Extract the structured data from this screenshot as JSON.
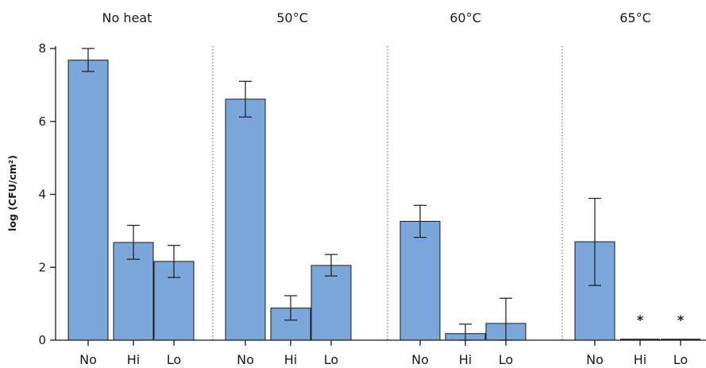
{
  "chart_data": {
    "type": "bar",
    "ylabel": "log (CFU/cm²)",
    "ylim": [
      0,
      8
    ],
    "yticks": [
      "0",
      "2",
      "4",
      "6",
      "8"
    ],
    "grid": false,
    "legend": "none",
    "bar_color": "#7ba6d9",
    "panels": [
      {
        "title": "No heat",
        "categories": [
          "No",
          "Hi",
          "Lo"
        ],
        "values": [
          7.68,
          2.68,
          2.16
        ],
        "error_low": [
          7.37,
          2.22,
          1.72
        ],
        "error_high": [
          8.0,
          3.15,
          2.6
        ],
        "markers": [
          "",
          "",
          ""
        ]
      },
      {
        "title": "50°C",
        "categories": [
          "No",
          "Hi",
          "Lo"
        ],
        "values": [
          6.61,
          0.88,
          2.05
        ],
        "error_low": [
          6.12,
          0.55,
          1.76
        ],
        "error_high": [
          7.1,
          1.22,
          2.35
        ],
        "markers": [
          "",
          "",
          ""
        ]
      },
      {
        "title": "60°C",
        "categories": [
          "No",
          "Hi",
          "Lo"
        ],
        "values": [
          3.26,
          0.18,
          0.46
        ],
        "error_low": [
          2.82,
          0.0,
          0.0
        ],
        "error_high": [
          3.7,
          0.44,
          1.15
        ],
        "markers": [
          "",
          "",
          ""
        ]
      },
      {
        "title": "65°C",
        "categories": [
          "No",
          "Hi",
          "Lo"
        ],
        "values": [
          2.7,
          0.0,
          0.0
        ],
        "error_low": [
          1.5,
          null,
          null
        ],
        "error_high": [
          3.89,
          null,
          null
        ],
        "markers": [
          "",
          "*",
          "*"
        ]
      }
    ]
  }
}
